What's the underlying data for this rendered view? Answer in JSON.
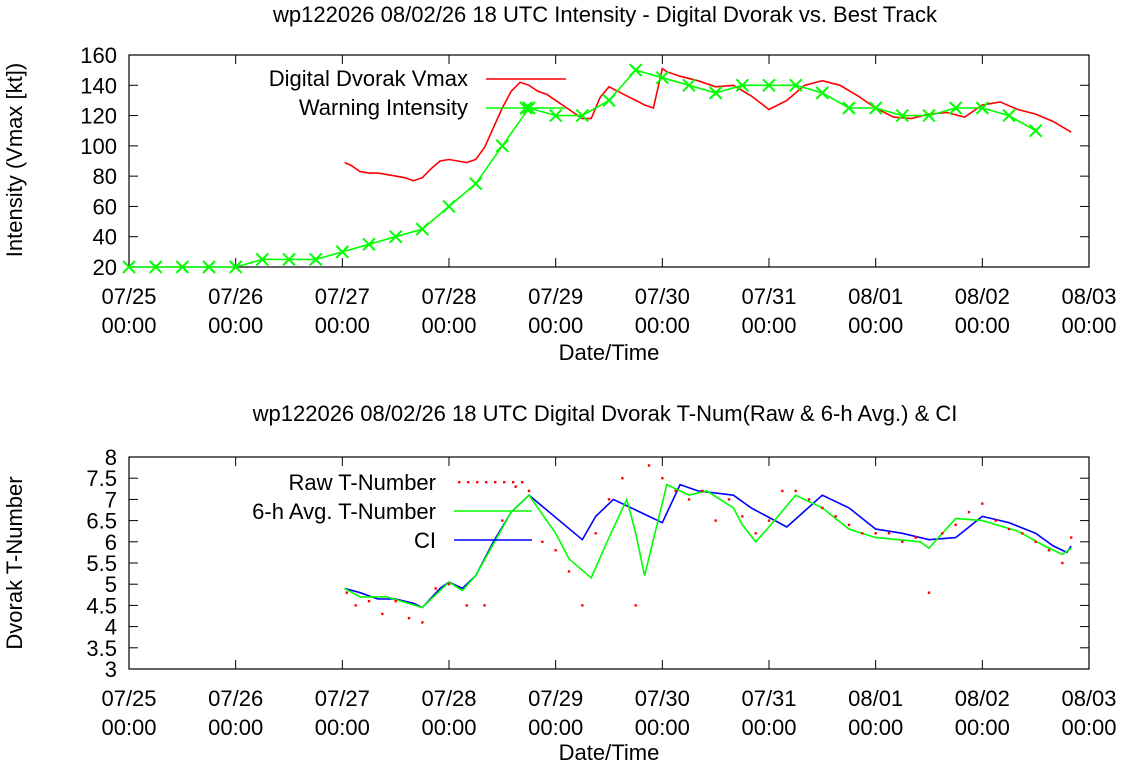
{
  "charts": [
    {
      "title": "wp122026 08/02/26  18 UTC Intensity - Digital Dvorak vs. Best Track",
      "xlabel": "Date/Time",
      "ylabel": "Intensity (Vmax [kt])",
      "x_ticks": [
        {
          "date": "07/25",
          "time": "00:00"
        },
        {
          "date": "07/26",
          "time": "00:00"
        },
        {
          "date": "07/27",
          "time": "00:00"
        },
        {
          "date": "07/28",
          "time": "00:00"
        },
        {
          "date": "07/29",
          "time": "00:00"
        },
        {
          "date": "07/30",
          "time": "00:00"
        },
        {
          "date": "07/31",
          "time": "00:00"
        },
        {
          "date": "08/01",
          "time": "00:00"
        },
        {
          "date": "08/02",
          "time": "00:00"
        },
        {
          "date": "08/03",
          "time": "00:00"
        }
      ],
      "y_ticks": [
        "20",
        "40",
        "60",
        "80",
        "100",
        "120",
        "140",
        "160"
      ],
      "legend": [
        "Digital Dvorak Vmax",
        "Warning Intensity"
      ]
    },
    {
      "title": "wp122026 08/02/26  18 UTC Digital Dvorak T-Num(Raw & 6-h Avg.) & CI",
      "xlabel": "Date/Time",
      "ylabel": "Dvorak T-Number",
      "x_ticks": [
        {
          "date": "07/25",
          "time": "00:00"
        },
        {
          "date": "07/26",
          "time": "00:00"
        },
        {
          "date": "07/27",
          "time": "00:00"
        },
        {
          "date": "07/28",
          "time": "00:00"
        },
        {
          "date": "07/29",
          "time": "00:00"
        },
        {
          "date": "07/30",
          "time": "00:00"
        },
        {
          "date": "07/31",
          "time": "00:00"
        },
        {
          "date": "08/01",
          "time": "00:00"
        },
        {
          "date": "08/02",
          "time": "00:00"
        },
        {
          "date": "08/03",
          "time": "00:00"
        }
      ],
      "y_ticks": [
        "3",
        "3.5",
        "4",
        "4.5",
        "5",
        "5.5",
        "6",
        "6.5",
        "7",
        "7.5",
        "8"
      ],
      "legend": [
        "Raw T-Number",
        "6-h Avg. T-Number",
        "CI"
      ]
    }
  ],
  "chart_data": [
    {
      "type": "line",
      "title": "wp122026 08/02/26  18 UTC Intensity - Digital Dvorak vs. Best Track",
      "xlabel": "Date/Time",
      "ylabel": "Intensity (Vmax [kt])",
      "xlim": [
        "07/25 00:00",
        "08/03 00:00"
      ],
      "ylim": [
        20,
        160
      ],
      "grid": false,
      "legend_position": "top-left",
      "colors": {
        "Digital Dvorak Vmax": "#ff0000",
        "Warning Intensity": "#00ff00"
      },
      "series": [
        {
          "name": "Digital Dvorak Vmax",
          "x": [
            "07/27 00:30",
            "07/27 02:00",
            "07/27 04:00",
            "07/27 06:00",
            "07/27 08:00",
            "07/27 10:00",
            "07/27 12:00",
            "07/27 14:00",
            "07/27 16:00",
            "07/27 18:00",
            "07/27 20:00",
            "07/27 22:00",
            "07/28 00:00",
            "07/28 02:00",
            "07/28 04:00",
            "07/28 06:00",
            "07/28 08:00",
            "07/28 10:00",
            "07/28 12:00",
            "07/28 14:00",
            "07/28 16:00",
            "07/28 18:00",
            "07/28 20:00",
            "07/28 22:00",
            "07/29 00:00",
            "07/29 02:00",
            "07/29 04:00",
            "07/29 06:00",
            "07/29 08:00",
            "07/29 10:00",
            "07/29 12:00",
            "07/29 14:00",
            "07/29 16:00",
            "07/29 18:00",
            "07/29 20:00",
            "07/29 22:00",
            "07/30 00:00",
            "07/30 01:00",
            "07/30 04:00",
            "07/30 08:00",
            "07/30 12:00",
            "07/30 16:00",
            "07/30 20:00",
            "07/31 00:00",
            "07/31 04:00",
            "07/31 08:00",
            "07/31 12:00",
            "07/31 16:00",
            "07/31 20:00",
            "08/01 00:00",
            "08/01 04:00",
            "08/01 08:00",
            "08/01 12:00",
            "08/01 16:00",
            "08/01 20:00",
            "08/02 00:00",
            "08/02 04:00",
            "08/02 08:00",
            "08/02 12:00",
            "08/02 16:00",
            "08/02 20:00"
          ],
          "values": [
            89,
            87,
            83,
            82,
            82,
            81,
            80,
            79,
            77,
            79,
            85,
            90,
            91,
            90,
            89,
            91,
            99,
            112,
            125,
            136,
            142,
            140,
            136,
            134,
            130,
            126,
            122,
            118,
            118,
            132,
            139,
            136,
            133,
            130,
            127,
            125,
            151,
            149,
            146,
            143,
            139,
            140,
            133,
            124,
            130,
            140,
            143,
            140,
            133,
            125,
            119,
            118,
            121,
            122,
            119,
            127,
            129,
            124,
            121,
            116,
            109
          ]
        },
        {
          "name": "Warning Intensity",
          "x": [
            "07/25 00:00",
            "07/25 06:00",
            "07/25 12:00",
            "07/25 18:00",
            "07/26 00:00",
            "07/26 06:00",
            "07/26 12:00",
            "07/26 18:00",
            "07/27 00:00",
            "07/27 06:00",
            "07/27 12:00",
            "07/27 18:00",
            "07/28 00:00",
            "07/28 06:00",
            "07/28 12:00",
            "07/28 18:00",
            "07/29 00:00",
            "07/29 06:00",
            "07/29 12:00",
            "07/29 18:00",
            "07/30 00:00",
            "07/30 06:00",
            "07/30 12:00",
            "07/30 18:00",
            "07/31 00:00",
            "07/31 06:00",
            "07/31 12:00",
            "07/31 18:00",
            "08/01 00:00",
            "08/01 06:00",
            "08/01 12:00",
            "08/01 18:00",
            "08/02 00:00",
            "08/02 06:00",
            "08/02 12:00"
          ],
          "values": [
            20,
            20,
            20,
            20,
            20,
            25,
            25,
            25,
            30,
            35,
            40,
            45,
            60,
            75,
            100,
            125,
            120,
            120,
            130,
            150,
            145,
            140,
            135,
            140,
            140,
            140,
            135,
            125,
            125,
            120,
            120,
            125,
            125,
            120,
            110
          ]
        }
      ]
    },
    {
      "type": "line",
      "title": "wp122026 08/02/26  18 UTC Digital Dvorak T-Num(Raw & 6-h Avg.) & CI",
      "xlabel": "Date/Time",
      "ylabel": "Dvorak T-Number",
      "xlim": [
        "07/25 00:00",
        "08/03 00:00"
      ],
      "ylim": [
        3,
        8
      ],
      "grid": false,
      "legend_position": "top-left",
      "colors": {
        "Raw T-Number": "#ff0000",
        "6-h Avg. T-Number": "#00ff00",
        "CI": "#0000ff"
      },
      "series": [
        {
          "name": "CI",
          "x": [
            "07/27 00:30",
            "07/27 04:00",
            "07/27 08:00",
            "07/27 12:00",
            "07/27 16:00",
            "07/27 18:00",
            "07/27 22:00",
            "07/28 00:00",
            "07/28 03:00",
            "07/28 06:00",
            "07/28 10:00",
            "07/28 14:00",
            "07/28 18:00",
            "07/29 06:00",
            "07/29 09:00",
            "07/29 13:00",
            "07/30 00:00",
            "07/30 04:00",
            "07/30 08:00",
            "07/30 16:00",
            "07/30 20:00",
            "07/31 04:00",
            "07/31 12:00",
            "07/31 18:00",
            "08/01 00:00",
            "08/01 06:00",
            "08/01 12:00",
            "08/01 18:00",
            "08/02 00:00",
            "08/02 06:00",
            "08/02 12:00",
            "08/02 16:00",
            "08/02 19:00",
            "08/02 20:00"
          ],
          "values": [
            4.9,
            4.8,
            4.65,
            4.65,
            4.55,
            4.45,
            4.9,
            5.05,
            4.9,
            5.2,
            6.0,
            6.7,
            7.1,
            6.05,
            6.6,
            7.0,
            6.45,
            7.35,
            7.2,
            7.1,
            6.8,
            6.35,
            7.1,
            6.8,
            6.3,
            6.2,
            6.05,
            6.1,
            6.6,
            6.45,
            6.2,
            5.9,
            5.75,
            5.9
          ]
        },
        {
          "name": "6-h Avg. T-Number",
          "x": [
            "07/27 00:30",
            "07/27 04:00",
            "07/27 10:00",
            "07/27 18:00",
            "07/28 00:00",
            "07/28 03:00",
            "07/28 06:00",
            "07/28 14:00",
            "07/28 18:00",
            "07/29 00:00",
            "07/29 03:00",
            "07/29 08:00",
            "07/29 12:00",
            "07/29 16:00",
            "07/29 18:00",
            "07/29 20:00",
            "07/30 01:00",
            "07/30 06:00",
            "07/30 10:00",
            "07/30 16:00",
            "07/30 18:00",
            "07/30 21:00",
            "07/31 00:00",
            "07/31 06:00",
            "07/31 12:00",
            "07/31 18:00",
            "08/01 00:00",
            "08/01 10:00",
            "08/01 12:00",
            "08/01 18:00",
            "08/02 00:00",
            "08/02 08:00",
            "08/02 14:00",
            "08/02 18:00",
            "08/02 20:00"
          ],
          "values": [
            4.9,
            4.7,
            4.7,
            4.45,
            5.05,
            4.85,
            5.2,
            6.7,
            7.1,
            6.2,
            5.6,
            5.15,
            6.1,
            7.0,
            6.2,
            5.2,
            7.35,
            7.1,
            7.2,
            6.8,
            6.4,
            6.0,
            6.35,
            7.1,
            6.8,
            6.3,
            6.1,
            6.0,
            5.85,
            6.55,
            6.5,
            6.25,
            5.9,
            5.7,
            5.85
          ]
        },
        {
          "name": "Raw T-Number",
          "x": [
            "07/27 01:00",
            "07/27 03:00",
            "07/27 06:00",
            "07/27 09:00",
            "07/27 12:00",
            "07/27 15:00",
            "07/27 18:00",
            "07/27 21:00",
            "07/28 00:00",
            "07/28 04:00",
            "07/28 08:00",
            "07/28 12:00",
            "07/28 15:00",
            "07/28 18:00",
            "07/28 21:00",
            "07/29 00:00",
            "07/29 03:00",
            "07/29 06:00",
            "07/29 09:00",
            "07/29 12:00",
            "07/29 15:00",
            "07/29 18:00",
            "07/29 21:00",
            "07/30 00:00",
            "07/30 03:00",
            "07/30 06:00",
            "07/30 09:00",
            "07/30 12:00",
            "07/30 15:00",
            "07/30 18:00",
            "07/30 21:00",
            "07/31 00:00",
            "07/31 03:00",
            "07/31 06:00",
            "07/31 09:00",
            "07/31 12:00",
            "07/31 15:00",
            "07/31 18:00",
            "07/31 21:00",
            "08/01 00:00",
            "08/01 03:00",
            "08/01 06:00",
            "08/01 09:00",
            "08/01 12:00",
            "08/01 15:00",
            "08/01 18:00",
            "08/01 21:00",
            "08/02 00:00",
            "08/02 03:00",
            "08/02 06:00",
            "08/02 09:00",
            "08/02 12:00",
            "08/02 15:00",
            "08/02 18:00",
            "08/02 20:00"
          ],
          "values": [
            4.8,
            4.5,
            4.6,
            4.3,
            4.6,
            4.2,
            4.1,
            4.9,
            5.0,
            4.5,
            4.5,
            6.5,
            7.3,
            7.2,
            6.0,
            5.8,
            5.3,
            4.5,
            6.2,
            7.0,
            7.5,
            4.5,
            7.8,
            7.5,
            7.2,
            7.0,
            7.2,
            6.5,
            7.0,
            6.6,
            6.2,
            6.5,
            7.2,
            7.2,
            7.0,
            6.8,
            6.6,
            6.4,
            6.2,
            6.2,
            6.2,
            6.0,
            6.1,
            4.8,
            6.2,
            6.4,
            6.7,
            6.9,
            6.5,
            6.3,
            6.2,
            6.0,
            5.8,
            5.5,
            6.1
          ]
        }
      ]
    }
  ]
}
